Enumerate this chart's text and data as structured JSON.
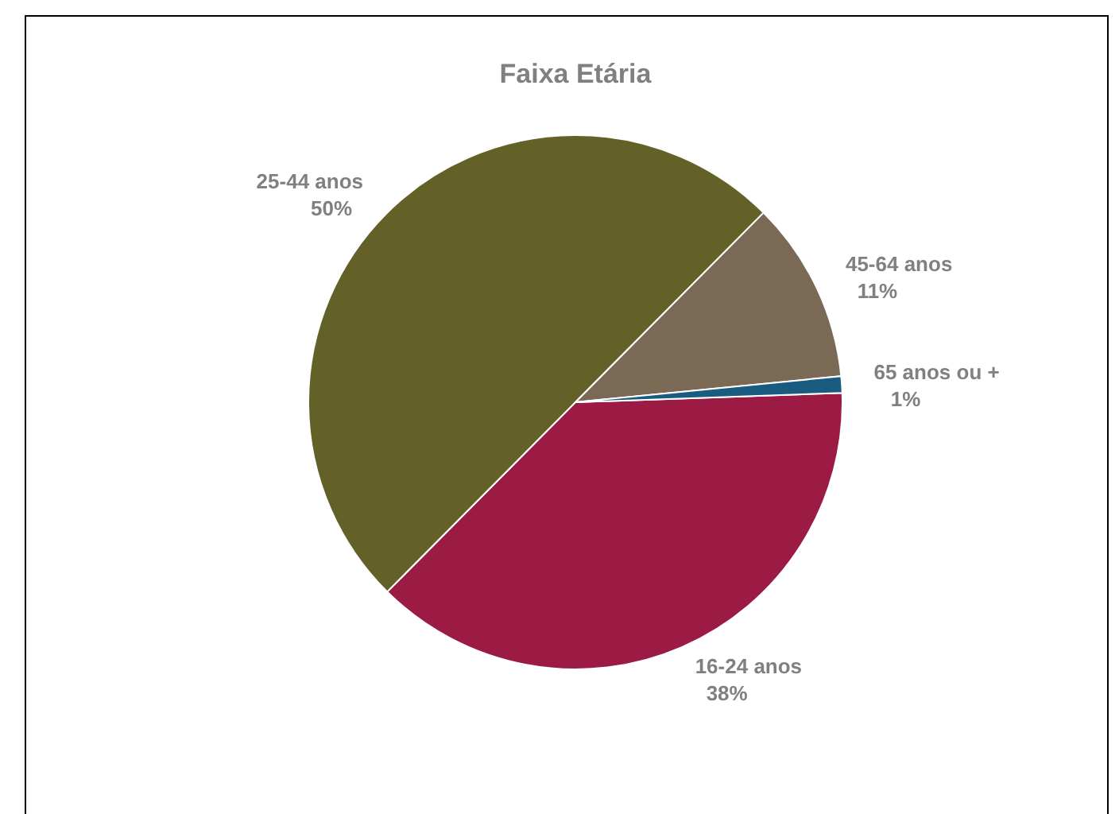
{
  "chart_data": {
    "type": "pie",
    "title": "Faixa Etária",
    "categories": [
      "16-24 anos",
      "25-44 anos",
      "45-64 anos",
      "65 anos ou +"
    ],
    "values": [
      38,
      50,
      11,
      1
    ],
    "value_labels": [
      "38%",
      "50%",
      "11%",
      "1%"
    ],
    "colors": [
      "#9b1b44",
      "#636028",
      "#7a6a55",
      "#1a5c80"
    ]
  }
}
